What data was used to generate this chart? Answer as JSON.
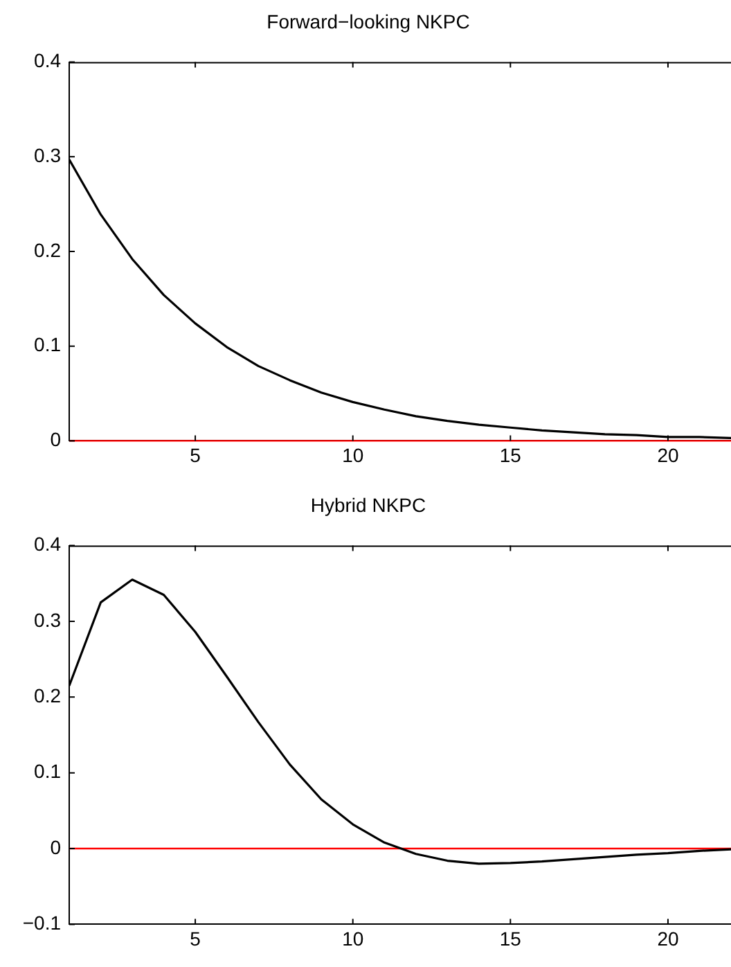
{
  "chart_data": [
    {
      "type": "line",
      "title": "Forward−looking NKPC",
      "x": [
        1,
        2,
        3,
        4,
        5,
        6,
        7,
        8,
        9,
        10,
        11,
        12,
        13,
        14,
        15,
        16,
        17,
        18,
        19,
        20,
        21,
        22
      ],
      "series": [
        {
          "color": "#000000",
          "values": [
            0.297,
            0.239,
            0.192,
            0.154,
            0.124,
            0.099,
            0.079,
            0.064,
            0.051,
            0.041,
            0.033,
            0.026,
            0.021,
            0.017,
            0.014,
            0.011,
            0.009,
            0.007,
            0.006,
            0.004,
            0.004,
            0.003
          ]
        }
      ],
      "xlim": [
        1,
        22
      ],
      "xticks": [
        5,
        10,
        15,
        20
      ],
      "ylim": [
        0,
        0.4
      ],
      "yticks": [
        0,
        0.1,
        0.2,
        0.3,
        0.4
      ],
      "ref_lines": [
        {
          "axis": "y",
          "value": 0,
          "color": "#ff0000"
        }
      ],
      "grid": false,
      "legend": false,
      "marker": "none",
      "line_style": "solid"
    },
    {
      "type": "line",
      "title": "Hybrid NKPC",
      "x": [
        1,
        2,
        3,
        4,
        5,
        6,
        7,
        8,
        9,
        10,
        11,
        12,
        13,
        14,
        15,
        16,
        17,
        18,
        19,
        20,
        21,
        22
      ],
      "series": [
        {
          "color": "#000000",
          "values": [
            0.215,
            0.325,
            0.355,
            0.335,
            0.286,
            0.227,
            0.167,
            0.111,
            0.065,
            0.032,
            0.008,
            -0.007,
            -0.016,
            -0.02,
            -0.019,
            -0.017,
            -0.014,
            -0.011,
            -0.008,
            -0.006,
            -0.003,
            -0.001
          ]
        }
      ],
      "xlim": [
        1,
        22
      ],
      "xticks": [
        5,
        10,
        15,
        20
      ],
      "ylim": [
        -0.1,
        0.4
      ],
      "yticks": [
        -0.1,
        0,
        0.1,
        0.2,
        0.3,
        0.4
      ],
      "ref_lines": [
        {
          "axis": "y",
          "value": 0,
          "color": "#ff0000"
        }
      ],
      "grid": false,
      "legend": false,
      "marker": "none",
      "line_style": "solid"
    }
  ]
}
